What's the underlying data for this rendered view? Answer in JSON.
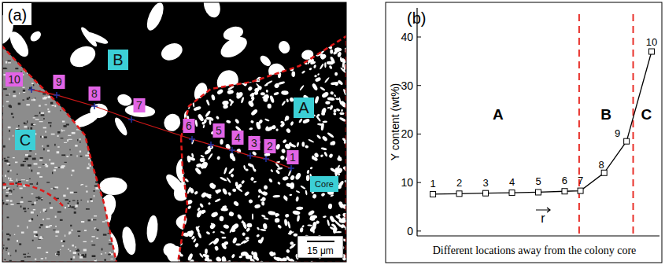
{
  "panel_a": {
    "label": "(a)",
    "regions": [
      "B",
      "A",
      "C"
    ],
    "core_label": "Core",
    "point_labels": [
      "1",
      "2",
      "3",
      "4",
      "5",
      "6",
      "7",
      "8",
      "9",
      "10"
    ],
    "scale_bar": "15 μm"
  },
  "chart_data": {
    "type": "line",
    "panel_label": "(b)",
    "y_label": "Y content (wt%)",
    "x_label": "Different locations away from the colony core",
    "x": [
      1,
      2,
      3,
      4,
      5,
      6,
      6.6,
      7.5,
      8.35,
      9.3
    ],
    "values": [
      7.6,
      7.7,
      7.8,
      7.9,
      8.0,
      8.2,
      8.3,
      12,
      18.5,
      37
    ],
    "point_labels": [
      "1",
      "2",
      "3",
      "4",
      "5",
      "6",
      "7",
      "8",
      "9",
      "10"
    ],
    "color": "#000000",
    "marker": "square",
    "xlim": [
      0.4,
      9.6
    ],
    "ylim": [
      -1,
      46
    ],
    "yticks": [
      0,
      10,
      20,
      30,
      40
    ],
    "tick_labels": "y",
    "regions": [
      {
        "label": "A"
      },
      {
        "label": "B"
      },
      {
        "label": "C"
      }
    ],
    "dividers": [
      6.55,
      8.6
    ],
    "divider_color": "#e8302a",
    "annotation": "r"
  }
}
